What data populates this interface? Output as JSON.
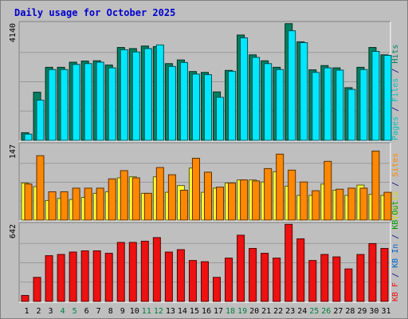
{
  "chart_data": {
    "type": "bar",
    "title": "Daily usage for October 2025",
    "colors": {
      "title": "#0000cc",
      "pages": "#00c0c0",
      "files": "#00e8ff",
      "hits": "#008060",
      "visits": "#ffff33",
      "sites": "#ff8800",
      "kb_in": "#0066cc",
      "kb_out": "#009900",
      "kb_f": "#ee1111",
      "weekend_label": "#008040",
      "weekday_label": "#000000"
    },
    "days": [
      "1",
      "2",
      "3",
      "4",
      "5",
      "6",
      "7",
      "8",
      "9",
      "10",
      "11",
      "12",
      "13",
      "14",
      "15",
      "16",
      "17",
      "18",
      "19",
      "20",
      "21",
      "22",
      "23",
      "24",
      "25",
      "26",
      "27",
      "28",
      "29",
      "30",
      "31"
    ],
    "weekend_days": [
      "4",
      "5",
      "11",
      "12",
      "18",
      "19",
      "25",
      "26"
    ],
    "panels": [
      {
        "key": "usage",
        "ymax_label": "4140",
        "ymax": 4140,
        "right_labels": [
          {
            "text": "Pages",
            "color": "#00c0c0"
          },
          {
            "text": "Files",
            "color": "#00c0c0"
          },
          {
            "text": "Hits",
            "color": "#008060"
          }
        ],
        "separator": " / ",
        "series": [
          {
            "name": "Hits",
            "color": "#008060",
            "values": [
              270,
              1700,
              2580,
              2580,
              2760,
              2800,
              2810,
              2660,
              3280,
              3240,
              3330,
              3310,
              2710,
              2840,
              2430,
              2400,
              1710,
              2470,
              3720,
              3020,
              2810,
              2580,
              4120,
              3480,
              2490,
              2640,
              2560,
              1860,
              2580,
              3280,
              3020
            ]
          },
          {
            "name": "Files",
            "color": "#00e8ff",
            "values": [
              220,
              1420,
              2500,
              2500,
              2680,
              2710,
              2760,
              2560,
              3200,
              3120,
              3240,
              3370,
              2610,
              2750,
              2340,
              2320,
              1520,
              2440,
              3620,
              2930,
              2710,
              2500,
              3870,
              3450,
              2400,
              2560,
              2480,
              1800,
              2500,
              3140,
              3000
            ]
          }
        ]
      },
      {
        "key": "visits",
        "ymax_label": "147",
        "ymax": 147,
        "right_labels": [
          {
            "text": "Visits",
            "color": "#dddd00"
          },
          {
            "text": "Sites",
            "color": "#ff8800"
          }
        ],
        "separator": " / ",
        "series": [
          {
            "name": "Visits",
            "color": "#ffff33",
            "values": [
              72,
              65,
              38,
              42,
              40,
              44,
              52,
              55,
              82,
              84,
              52,
              84,
              54,
              67,
              101,
              54,
              62,
              72,
              78,
              78,
              74,
              94,
              66,
              48,
              48,
              70,
              58,
              48,
              68,
              50,
              48
            ]
          },
          {
            "name": "Sites",
            "color": "#ff8800",
            "values": [
              70,
              125,
              55,
              55,
              62,
              62,
              62,
              80,
              96,
              82,
              52,
              102,
              88,
              58,
              120,
              93,
              64,
              72,
              78,
              76,
              100,
              128,
              97,
              74,
              57,
              114,
              60,
              62,
              62,
              134,
              54
            ]
          }
        ]
      },
      {
        "key": "kbytes",
        "ymax_label": "642",
        "ymax": 642,
        "right_labels": [
          {
            "text": "KB F",
            "color": "#ee1111"
          },
          {
            "text": "KB In",
            "color": "#0066cc"
          },
          {
            "text": "KB Out",
            "color": "#009900"
          }
        ],
        "separator": " / ",
        "series": [
          {
            "name": "KB F",
            "color": "#ee1111",
            "values": [
              50,
              200,
              380,
              390,
              410,
              420,
              420,
              400,
              490,
              490,
              500,
              530,
              410,
              430,
              340,
              330,
              200,
              360,
              550,
              440,
              400,
              360,
              640,
              520,
              340,
              390,
              370,
              270,
              390,
              480,
              440
            ]
          }
        ]
      }
    ]
  }
}
